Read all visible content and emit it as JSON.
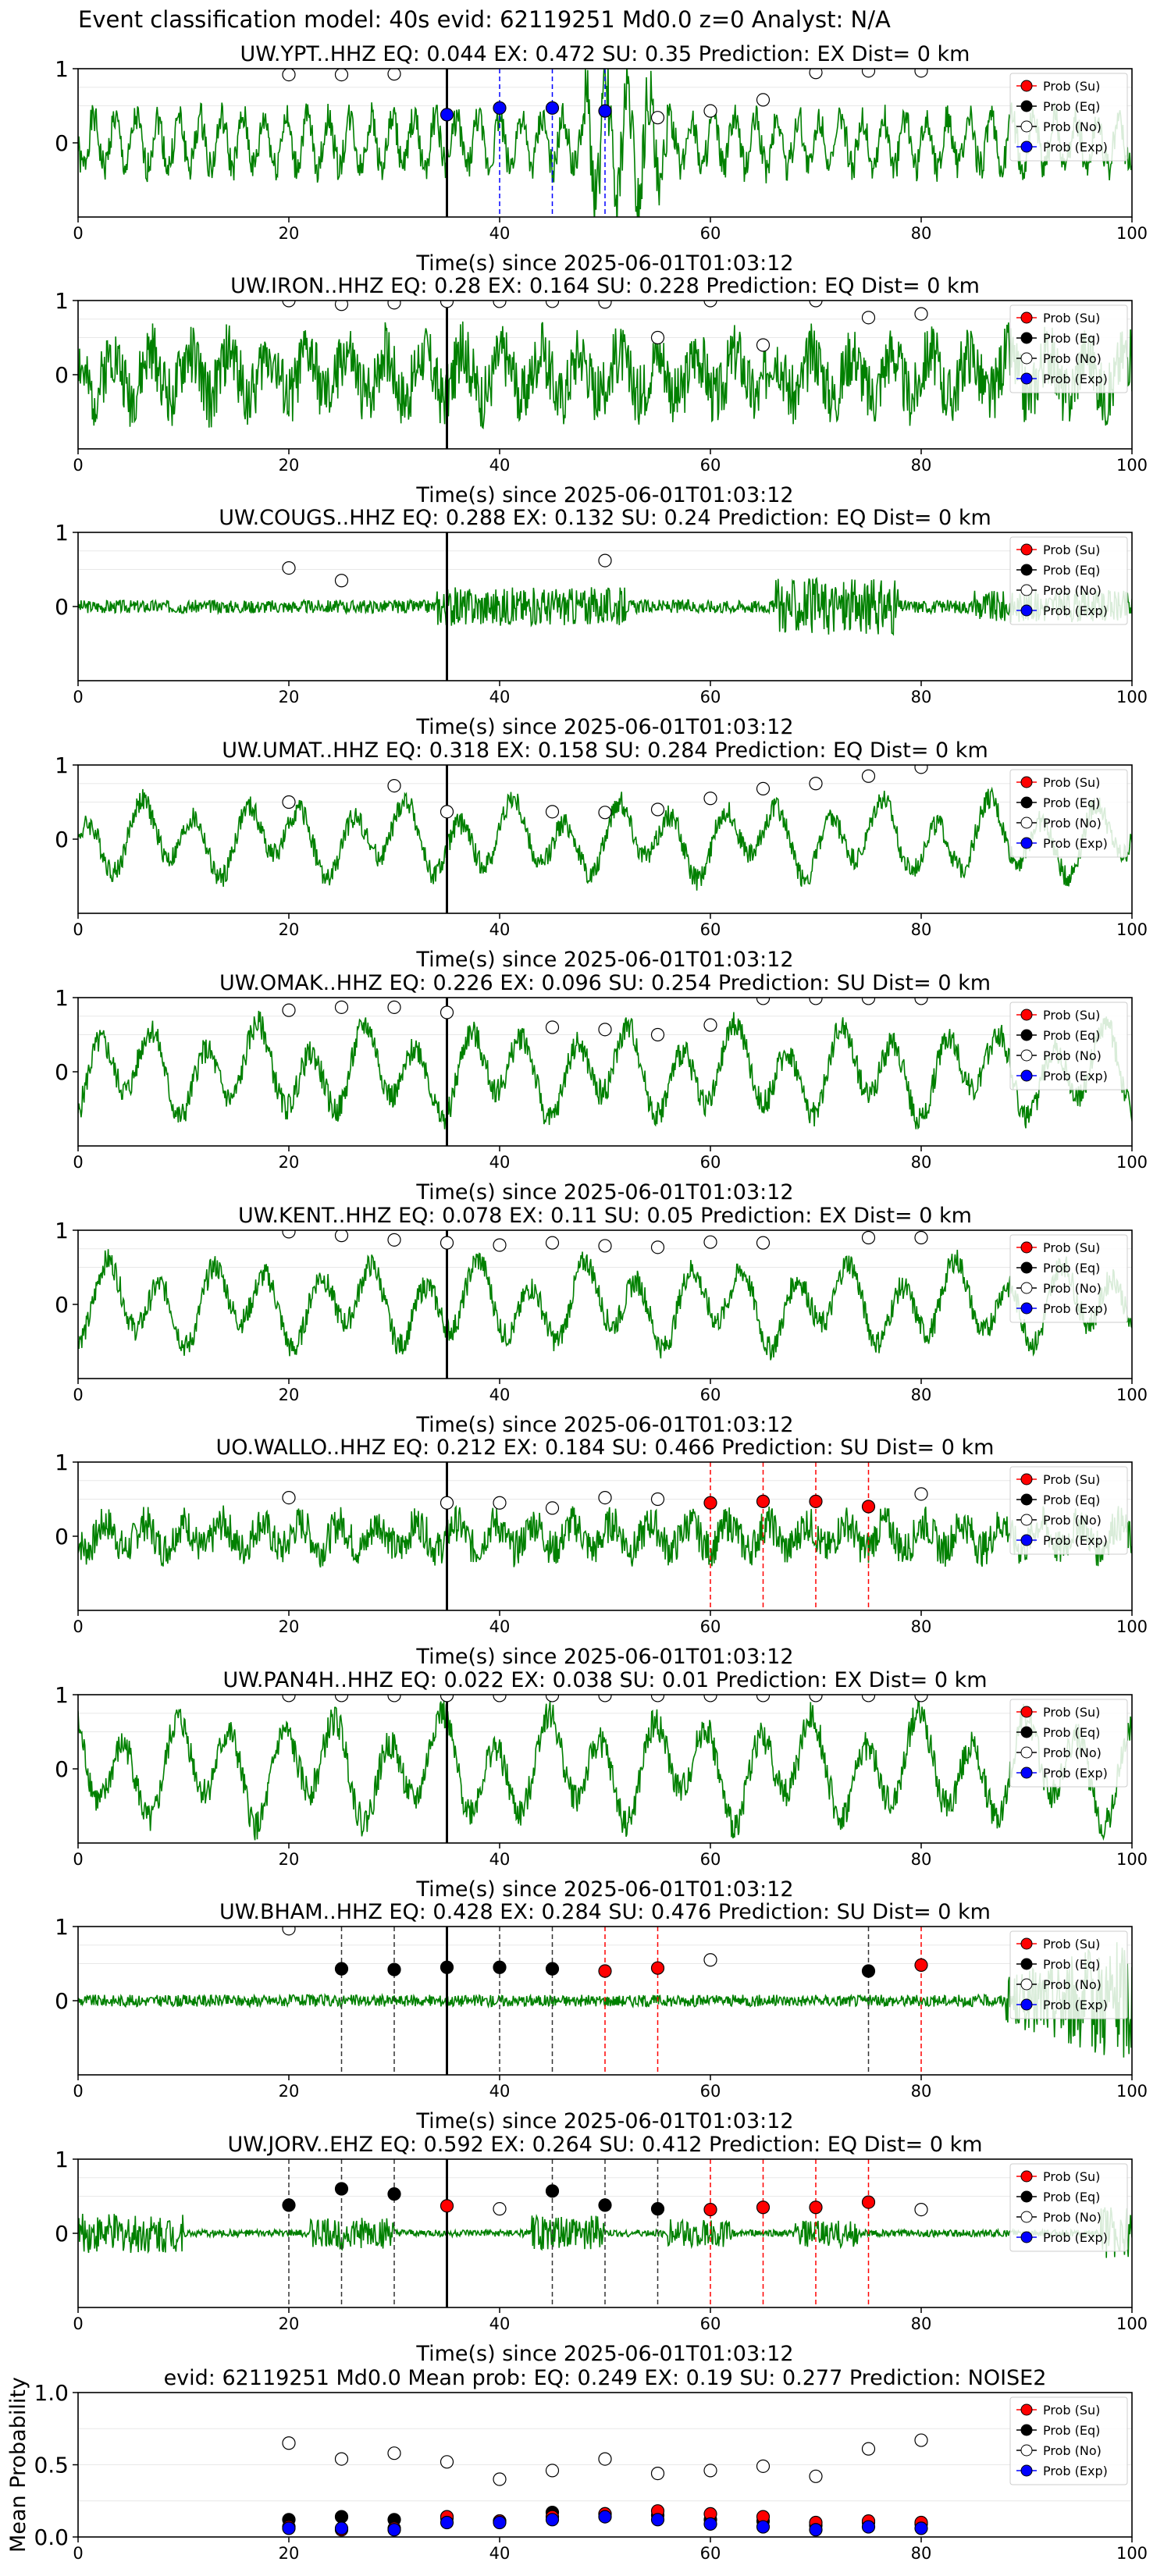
{
  "figure_title": "Event classification model: 40s evid: 62119251 Md0.0 z=0 Analyst: N/A",
  "legend_labels": [
    "Prob (Su)",
    "Prob (Eq)",
    "Prob (No)",
    "Prob (Exp)"
  ],
  "colors": {
    "waveform": "#008000",
    "su": "#ff0000",
    "eq": "#000000",
    "no": "#ffffff",
    "exp": "#0000ff",
    "pick_line": "#000000"
  },
  "chart_data": [
    {
      "type": "line",
      "title": "UW.YPT..HHZ   EQ: 0.044  EX: 0.472  SU: 0.35   Prediction: EX    Dist= 0 km",
      "xlabel": "Time(s) since 2025-06-01T01:03:12",
      "xlim": [
        0,
        100
      ],
      "ylim": [
        -1,
        1
      ],
      "xticks": [
        0,
        20,
        40,
        60,
        80,
        100
      ],
      "yticks": [
        0,
        1
      ],
      "pick_time": 35,
      "waveform": {
        "style": "noisy",
        "amplitude": 0.55,
        "seed": 1
      },
      "markers": [
        {
          "x": 20,
          "y": 0.92,
          "class": "no"
        },
        {
          "x": 25,
          "y": 0.92,
          "class": "no"
        },
        {
          "x": 30,
          "y": 0.93,
          "class": "no"
        },
        {
          "x": 35,
          "y": 0.38,
          "class": "exp"
        },
        {
          "x": 40,
          "y": 0.47,
          "class": "exp"
        },
        {
          "x": 45,
          "y": 0.47,
          "class": "exp"
        },
        {
          "x": 50,
          "y": 0.43,
          "class": "exp"
        },
        {
          "x": 55,
          "y": 0.34,
          "class": "no"
        },
        {
          "x": 60,
          "y": 0.43,
          "class": "no"
        },
        {
          "x": 65,
          "y": 0.58,
          "class": "no"
        },
        {
          "x": 70,
          "y": 0.95,
          "class": "no"
        },
        {
          "x": 75,
          "y": 0.97,
          "class": "no"
        },
        {
          "x": 80,
          "y": 0.97,
          "class": "no"
        }
      ],
      "vlines": [
        {
          "x": 40,
          "color": "exp"
        },
        {
          "x": 45,
          "color": "exp"
        },
        {
          "x": 50,
          "color": "exp"
        }
      ]
    },
    {
      "type": "line",
      "title": "UW.IRON..HHZ   EQ: 0.28  EX: 0.164  SU: 0.228   Prediction: EQ    Dist= 0 km",
      "xlabel": "Time(s) since 2025-06-01T01:03:12",
      "xlim": [
        0,
        100
      ],
      "ylim": [
        -1,
        1
      ],
      "xticks": [
        0,
        20,
        40,
        60,
        80,
        100
      ],
      "yticks": [
        0,
        1
      ],
      "pick_time": 35,
      "waveform": {
        "style": "dense",
        "amplitude": 0.6,
        "seed": 2
      },
      "markers": [
        {
          "x": 20,
          "y": 1.0,
          "class": "no"
        },
        {
          "x": 25,
          "y": 0.95,
          "class": "no"
        },
        {
          "x": 30,
          "y": 0.97,
          "class": "no"
        },
        {
          "x": 35,
          "y": 0.99,
          "class": "no"
        },
        {
          "x": 40,
          "y": 0.99,
          "class": "no"
        },
        {
          "x": 45,
          "y": 0.99,
          "class": "no"
        },
        {
          "x": 50,
          "y": 0.98,
          "class": "no"
        },
        {
          "x": 55,
          "y": 0.5,
          "class": "no"
        },
        {
          "x": 60,
          "y": 1.0,
          "class": "no"
        },
        {
          "x": 65,
          "y": 0.4,
          "class": "no"
        },
        {
          "x": 70,
          "y": 1.0,
          "class": "no"
        },
        {
          "x": 75,
          "y": 0.77,
          "class": "no"
        },
        {
          "x": 80,
          "y": 0.82,
          "class": "no"
        }
      ],
      "vlines": []
    },
    {
      "type": "line",
      "title": "UW.COUGS..HHZ   EQ: 0.288  EX: 0.132  SU: 0.24   Prediction: EQ    Dist= 0 km",
      "xlabel": "Time(s) since 2025-06-01T01:03:12",
      "xlim": [
        0,
        100
      ],
      "ylim": [
        -1,
        1
      ],
      "xticks": [
        0,
        20,
        40,
        60,
        80,
        100
      ],
      "yticks": [
        0,
        1
      ],
      "pick_time": 35,
      "waveform": {
        "style": "burst",
        "amplitude": 0.2,
        "seed": 3
      },
      "markers": [
        {
          "x": 20,
          "y": 0.52,
          "class": "no"
        },
        {
          "x": 25,
          "y": 0.35,
          "class": "no"
        },
        {
          "x": 50,
          "y": 0.62,
          "class": "no"
        }
      ],
      "vlines": []
    },
    {
      "type": "line",
      "title": "UW.UMAT..HHZ   EQ: 0.318  EX: 0.158  SU: 0.284   Prediction: EQ    Dist= 0 km",
      "xlabel": "Time(s) since 2025-06-01T01:03:12",
      "xlim": [
        0,
        100
      ],
      "ylim": [
        -1,
        1
      ],
      "xticks": [
        0,
        20,
        40,
        60,
        80,
        100
      ],
      "yticks": [
        0,
        1
      ],
      "pick_time": 35,
      "waveform": {
        "style": "wavy",
        "amplitude": 0.5,
        "seed": 4
      },
      "markers": [
        {
          "x": 20,
          "y": 0.5,
          "class": "no"
        },
        {
          "x": 30,
          "y": 0.72,
          "class": "no"
        },
        {
          "x": 35,
          "y": 0.37,
          "class": "no"
        },
        {
          "x": 45,
          "y": 0.37,
          "class": "no"
        },
        {
          "x": 50,
          "y": 0.36,
          "class": "no"
        },
        {
          "x": 55,
          "y": 0.4,
          "class": "no"
        },
        {
          "x": 60,
          "y": 0.55,
          "class": "no"
        },
        {
          "x": 65,
          "y": 0.68,
          "class": "no"
        },
        {
          "x": 70,
          "y": 0.75,
          "class": "no"
        },
        {
          "x": 75,
          "y": 0.85,
          "class": "no"
        },
        {
          "x": 80,
          "y": 0.97,
          "class": "no"
        }
      ],
      "vlines": []
    },
    {
      "type": "line",
      "title": "UW.OMAK..HHZ   EQ: 0.226  EX: 0.096  SU: 0.254   Prediction: SU    Dist= 0 km",
      "xlabel": "Time(s) since 2025-06-01T01:03:12",
      "xlim": [
        0,
        100
      ],
      "ylim": [
        -1,
        1
      ],
      "xticks": [
        0,
        20,
        40,
        60,
        80,
        100
      ],
      "yticks": [
        0,
        1
      ],
      "pick_time": 35,
      "waveform": {
        "style": "wavy",
        "amplitude": 0.6,
        "seed": 5
      },
      "markers": [
        {
          "x": 20,
          "y": 0.83,
          "class": "no"
        },
        {
          "x": 25,
          "y": 0.87,
          "class": "no"
        },
        {
          "x": 30,
          "y": 0.87,
          "class": "no"
        },
        {
          "x": 35,
          "y": 0.8,
          "class": "no"
        },
        {
          "x": 45,
          "y": 0.6,
          "class": "no"
        },
        {
          "x": 50,
          "y": 0.57,
          "class": "no"
        },
        {
          "x": 55,
          "y": 0.5,
          "class": "no"
        },
        {
          "x": 60,
          "y": 0.63,
          "class": "no"
        },
        {
          "x": 65,
          "y": 0.99,
          "class": "no"
        },
        {
          "x": 70,
          "y": 0.99,
          "class": "no"
        },
        {
          "x": 75,
          "y": 0.99,
          "class": "no"
        },
        {
          "x": 80,
          "y": 0.99,
          "class": "no"
        }
      ],
      "vlines": []
    },
    {
      "type": "line",
      "title": "UW.KENT..HHZ   EQ: 0.078  EX: 0.11  SU: 0.05   Prediction: EX    Dist= 0 km",
      "xlabel": "Time(s) since 2025-06-01T01:03:12",
      "xlim": [
        0,
        100
      ],
      "ylim": [
        -1,
        1
      ],
      "xticks": [
        0,
        20,
        40,
        60,
        80,
        100
      ],
      "yticks": [
        0,
        1
      ],
      "pick_time": 35,
      "waveform": {
        "style": "wavy",
        "amplitude": 0.55,
        "seed": 6
      },
      "markers": [
        {
          "x": 20,
          "y": 0.98,
          "class": "no"
        },
        {
          "x": 25,
          "y": 0.93,
          "class": "no"
        },
        {
          "x": 30,
          "y": 0.87,
          "class": "no"
        },
        {
          "x": 35,
          "y": 0.83,
          "class": "no"
        },
        {
          "x": 40,
          "y": 0.8,
          "class": "no"
        },
        {
          "x": 45,
          "y": 0.83,
          "class": "no"
        },
        {
          "x": 50,
          "y": 0.79,
          "class": "no"
        },
        {
          "x": 55,
          "y": 0.77,
          "class": "no"
        },
        {
          "x": 60,
          "y": 0.84,
          "class": "no"
        },
        {
          "x": 65,
          "y": 0.83,
          "class": "no"
        },
        {
          "x": 75,
          "y": 0.9,
          "class": "no"
        },
        {
          "x": 80,
          "y": 0.9,
          "class": "no"
        }
      ],
      "vlines": []
    },
    {
      "type": "line",
      "title": "UO.WALLO..HHZ   EQ: 0.212  EX: 0.184  SU: 0.466   Prediction: SU    Dist= 0 km",
      "xlabel": "Time(s) since 2025-06-01T01:03:12",
      "xlim": [
        0,
        100
      ],
      "ylim": [
        -1,
        1
      ],
      "xticks": [
        0,
        20,
        40,
        60,
        80,
        100
      ],
      "yticks": [
        0,
        1
      ],
      "pick_time": 35,
      "waveform": {
        "style": "dense",
        "amplitude": 0.35,
        "seed": 7
      },
      "markers": [
        {
          "x": 20,
          "y": 0.52,
          "class": "no"
        },
        {
          "x": 35,
          "y": 0.45,
          "class": "no"
        },
        {
          "x": 40,
          "y": 0.45,
          "class": "no"
        },
        {
          "x": 45,
          "y": 0.38,
          "class": "no"
        },
        {
          "x": 50,
          "y": 0.52,
          "class": "no"
        },
        {
          "x": 55,
          "y": 0.5,
          "class": "no"
        },
        {
          "x": 60,
          "y": 0.45,
          "class": "su"
        },
        {
          "x": 65,
          "y": 0.47,
          "class": "su"
        },
        {
          "x": 70,
          "y": 0.47,
          "class": "su"
        },
        {
          "x": 75,
          "y": 0.4,
          "class": "su"
        },
        {
          "x": 80,
          "y": 0.57,
          "class": "no"
        }
      ],
      "vlines": [
        {
          "x": 60,
          "color": "su"
        },
        {
          "x": 65,
          "color": "su"
        },
        {
          "x": 70,
          "color": "su"
        },
        {
          "x": 75,
          "color": "su"
        }
      ]
    },
    {
      "type": "line",
      "title": "UW.PAN4H..HHZ   EQ: 0.022  EX: 0.038  SU: 0.01   Prediction: EX    Dist= 0 km",
      "xlabel": "Time(s) since 2025-06-01T01:03:12",
      "xlim": [
        0,
        100
      ],
      "ylim": [
        -1,
        1
      ],
      "xticks": [
        0,
        20,
        40,
        60,
        80,
        100
      ],
      "yticks": [
        0,
        1
      ],
      "pick_time": 35,
      "waveform": {
        "style": "wavy",
        "amplitude": 0.7,
        "seed": 8
      },
      "markers": [
        {
          "x": 20,
          "y": 0.99,
          "class": "no"
        },
        {
          "x": 25,
          "y": 0.99,
          "class": "no"
        },
        {
          "x": 30,
          "y": 0.99,
          "class": "no"
        },
        {
          "x": 35,
          "y": 0.99,
          "class": "no"
        },
        {
          "x": 40,
          "y": 0.99,
          "class": "no"
        },
        {
          "x": 45,
          "y": 0.99,
          "class": "no"
        },
        {
          "x": 50,
          "y": 0.99,
          "class": "no"
        },
        {
          "x": 55,
          "y": 0.99,
          "class": "no"
        },
        {
          "x": 60,
          "y": 0.99,
          "class": "no"
        },
        {
          "x": 65,
          "y": 0.99,
          "class": "no"
        },
        {
          "x": 70,
          "y": 0.99,
          "class": "no"
        },
        {
          "x": 75,
          "y": 0.99,
          "class": "no"
        },
        {
          "x": 80,
          "y": 0.99,
          "class": "no"
        }
      ],
      "vlines": []
    },
    {
      "type": "line",
      "title": "UW.BHAM..HHZ   EQ: 0.428  EX: 0.284  SU: 0.476   Prediction: SU    Dist= 0 km",
      "xlabel": "Time(s) since 2025-06-01T01:03:12",
      "xlim": [
        0,
        100
      ],
      "ylim": [
        -1,
        1
      ],
      "xticks": [
        0,
        20,
        40,
        60,
        80,
        100
      ],
      "yticks": [
        0,
        1
      ],
      "pick_time": 35,
      "waveform": {
        "style": "quiet_end",
        "amplitude": 0.08,
        "seed": 9
      },
      "markers": [
        {
          "x": 20,
          "y": 0.97,
          "class": "no"
        },
        {
          "x": 25,
          "y": 0.43,
          "class": "eq"
        },
        {
          "x": 30,
          "y": 0.42,
          "class": "eq"
        },
        {
          "x": 35,
          "y": 0.45,
          "class": "eq"
        },
        {
          "x": 40,
          "y": 0.45,
          "class": "eq"
        },
        {
          "x": 45,
          "y": 0.43,
          "class": "eq"
        },
        {
          "x": 50,
          "y": 0.4,
          "class": "su"
        },
        {
          "x": 55,
          "y": 0.44,
          "class": "su"
        },
        {
          "x": 60,
          "y": 0.55,
          "class": "no"
        },
        {
          "x": 75,
          "y": 0.4,
          "class": "eq"
        },
        {
          "x": 80,
          "y": 0.48,
          "class": "su"
        }
      ],
      "vlines": [
        {
          "x": 25,
          "color": "gray"
        },
        {
          "x": 30,
          "color": "gray"
        },
        {
          "x": 40,
          "color": "gray"
        },
        {
          "x": 45,
          "color": "gray"
        },
        {
          "x": 50,
          "color": "su"
        },
        {
          "x": 55,
          "color": "su"
        },
        {
          "x": 75,
          "color": "gray"
        },
        {
          "x": 80,
          "color": "su"
        }
      ]
    },
    {
      "type": "line",
      "title": "UW.JORV..EHZ   EQ: 0.592  EX: 0.264  SU: 0.412   Prediction: EQ    Dist= 0 km",
      "xlabel": "Time(s) since 2025-06-01T01:03:12",
      "xlim": [
        0,
        100
      ],
      "ylim": [
        -1,
        1
      ],
      "xticks": [
        0,
        20,
        40,
        60,
        80,
        100
      ],
      "yticks": [
        0,
        1
      ],
      "pick_time": 35,
      "waveform": {
        "style": "spiky",
        "amplitude": 0.12,
        "seed": 10
      },
      "markers": [
        {
          "x": 20,
          "y": 0.38,
          "class": "eq"
        },
        {
          "x": 25,
          "y": 0.6,
          "class": "eq"
        },
        {
          "x": 30,
          "y": 0.53,
          "class": "eq"
        },
        {
          "x": 35,
          "y": 0.37,
          "class": "su"
        },
        {
          "x": 40,
          "y": 0.33,
          "class": "no"
        },
        {
          "x": 45,
          "y": 0.57,
          "class": "eq"
        },
        {
          "x": 50,
          "y": 0.38,
          "class": "eq"
        },
        {
          "x": 55,
          "y": 0.33,
          "class": "eq"
        },
        {
          "x": 60,
          "y": 0.32,
          "class": "su"
        },
        {
          "x": 65,
          "y": 0.35,
          "class": "su"
        },
        {
          "x": 70,
          "y": 0.35,
          "class": "su"
        },
        {
          "x": 75,
          "y": 0.42,
          "class": "su"
        },
        {
          "x": 80,
          "y": 0.32,
          "class": "no"
        }
      ],
      "vlines": [
        {
          "x": 20,
          "color": "gray"
        },
        {
          "x": 25,
          "color": "gray"
        },
        {
          "x": 30,
          "color": "gray"
        },
        {
          "x": 45,
          "color": "gray"
        },
        {
          "x": 50,
          "color": "gray"
        },
        {
          "x": 55,
          "color": "gray"
        },
        {
          "x": 60,
          "color": "su"
        },
        {
          "x": 65,
          "color": "su"
        },
        {
          "x": 70,
          "color": "su"
        },
        {
          "x": 75,
          "color": "su"
        }
      ]
    },
    {
      "type": "scatter",
      "title": "evid: 62119251  Md0.0   Mean prob:   EQ: 0.249  EX: 0.19  SU: 0.277   Prediction: NOISE2",
      "ylabel": "Mean Probability",
      "xlim": [
        0,
        100
      ],
      "ylim": [
        0,
        1.0
      ],
      "xticks": [
        0,
        20,
        40,
        60,
        80,
        100
      ],
      "yticks": [
        0.0,
        0.5,
        1.0
      ],
      "x": [
        20,
        25,
        30,
        35,
        40,
        45,
        50,
        55,
        60,
        65,
        70,
        75,
        80
      ],
      "series": [
        {
          "name": "Prob (No)",
          "class": "no",
          "values": [
            0.65,
            0.54,
            0.58,
            0.52,
            0.4,
            0.46,
            0.54,
            0.44,
            0.46,
            0.49,
            0.42,
            0.61,
            0.67
          ]
        },
        {
          "name": "Prob (Eq)",
          "class": "eq",
          "values": [
            0.12,
            0.14,
            0.12,
            0.13,
            0.11,
            0.17,
            0.16,
            0.15,
            0.12,
            0.11,
            0.08,
            0.1,
            0.09
          ]
        },
        {
          "name": "Prob (Su)",
          "class": "su",
          "values": [
            0.07,
            0.05,
            0.06,
            0.14,
            0.11,
            0.14,
            0.16,
            0.18,
            0.16,
            0.14,
            0.1,
            0.11,
            0.1
          ]
        },
        {
          "name": "Prob (Exp)",
          "class": "exp",
          "values": [
            0.06,
            0.06,
            0.05,
            0.1,
            0.1,
            0.12,
            0.14,
            0.12,
            0.09,
            0.07,
            0.05,
            0.07,
            0.06
          ]
        }
      ]
    }
  ]
}
